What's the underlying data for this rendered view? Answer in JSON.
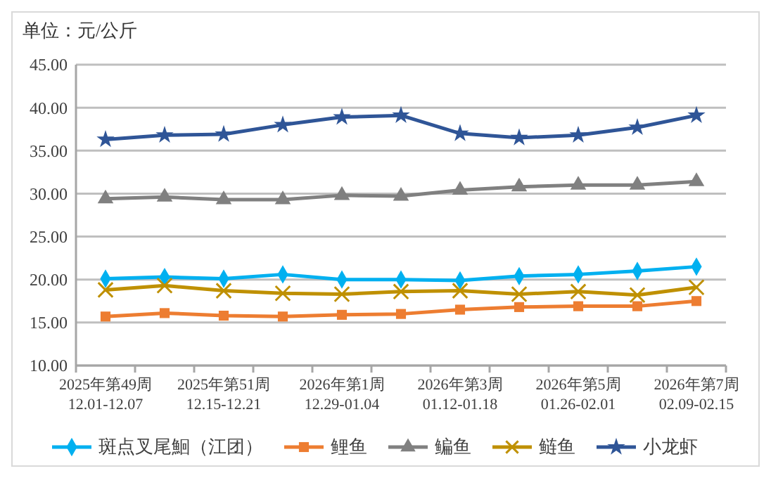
{
  "chart_data": {
    "type": "line",
    "title": "单位：元/公斤",
    "categories": [
      "2025年第49周\n12.01-12.07",
      null,
      "2025年第51周\n12.15-12.21",
      null,
      "2026年第1周\n12.29-01.04",
      null,
      "2026年第3周\n01.12-01.18",
      null,
      "2026年第5周\n01.26-02.01",
      null,
      "2026年第7周\n02.09-02.15"
    ],
    "series": [
      {
        "name": "斑点叉尾鮰（江团）",
        "color": "#00b0f0",
        "marker": "diamond",
        "values": [
          20.1,
          20.3,
          20.1,
          20.6,
          20.0,
          20.0,
          19.9,
          20.4,
          20.6,
          21.0,
          21.5
        ]
      },
      {
        "name": "鲤鱼",
        "color": "#ed7d31",
        "marker": "square",
        "values": [
          15.7,
          16.1,
          15.8,
          15.7,
          15.9,
          16.0,
          16.5,
          16.8,
          16.9,
          16.9,
          17.5
        ]
      },
      {
        "name": "鳊鱼",
        "color": "#808080",
        "marker": "triangle",
        "values": [
          29.4,
          29.6,
          29.3,
          29.3,
          29.8,
          29.7,
          30.4,
          30.8,
          31.0,
          31.0,
          31.4
        ]
      },
      {
        "name": "鲢鱼",
        "color": "#bf9000",
        "marker": "cross",
        "values": [
          18.8,
          19.3,
          18.7,
          18.4,
          18.3,
          18.6,
          18.7,
          18.3,
          18.6,
          18.2,
          19.1
        ]
      },
      {
        "name": "小龙虾",
        "color": "#2f5597",
        "marker": "star",
        "values": [
          36.3,
          36.8,
          36.9,
          38.0,
          38.9,
          39.1,
          37.0,
          36.5,
          36.8,
          37.7,
          39.1
        ]
      }
    ],
    "ylim": [
      10,
      45
    ],
    "yticks": [
      {
        "value": 10,
        "label": "10.00"
      },
      {
        "value": 15,
        "label": "15.00"
      },
      {
        "value": 20,
        "label": "20.00"
      },
      {
        "value": 25,
        "label": "25.00"
      },
      {
        "value": 30,
        "label": "30.00"
      },
      {
        "value": 35,
        "label": "35.00"
      },
      {
        "value": 40,
        "label": "40.00"
      },
      {
        "value": 45,
        "label": "45.00"
      }
    ],
    "grid": "y",
    "legend": "bottom",
    "line_style": "solid"
  }
}
